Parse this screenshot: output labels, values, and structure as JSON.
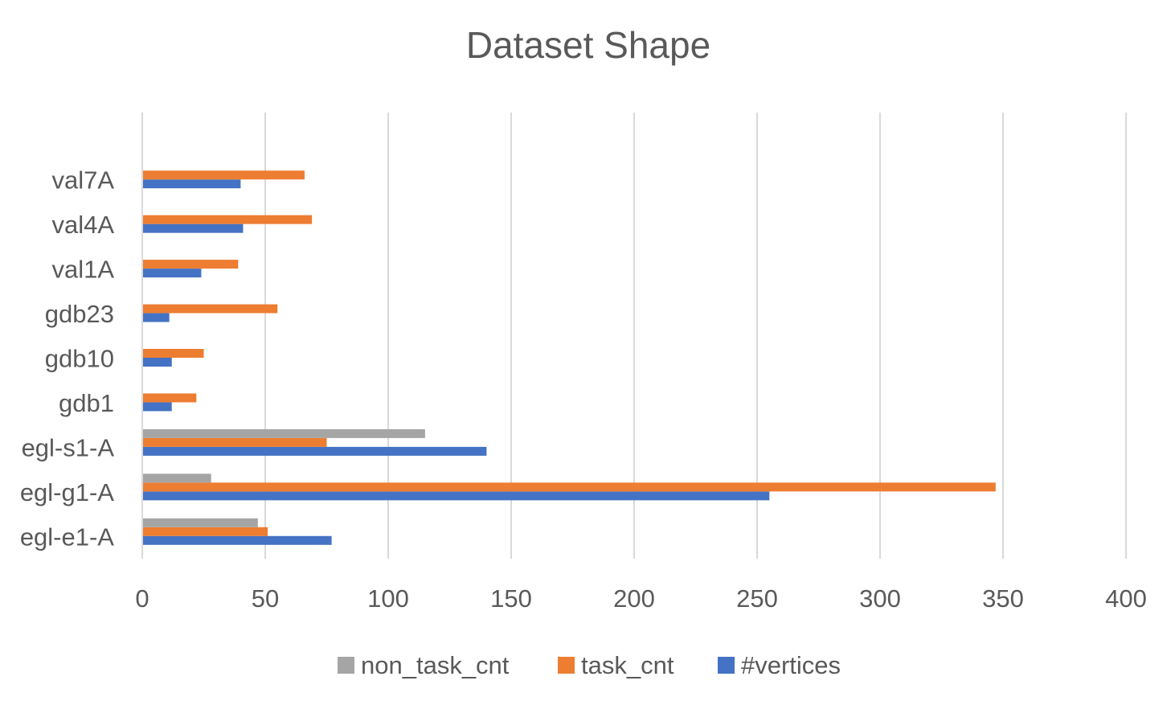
{
  "chart_data": {
    "type": "bar",
    "orientation": "horizontal",
    "title": "Dataset Shape",
    "xlabel": "",
    "ylabel": "",
    "xlim": [
      0,
      400
    ],
    "x_ticks": [
      0,
      50,
      100,
      150,
      200,
      250,
      300,
      350,
      400
    ],
    "grid": "vertical",
    "legend_position": "bottom",
    "categories": [
      "egl-e1-A",
      "egl-g1-A",
      "egl-s1-A",
      "gdb1",
      "gdb10",
      "gdb23",
      "val1A",
      "val4A",
      "val7A"
    ],
    "series": [
      {
        "name": "#vertices",
        "color": "#4472C4",
        "values": [
          77,
          255,
          140,
          12,
          12,
          11,
          24,
          41,
          40
        ]
      },
      {
        "name": "task_cnt",
        "color": "#ED7D31",
        "values": [
          51,
          347,
          75,
          22,
          25,
          55,
          39,
          69,
          66
        ]
      },
      {
        "name": "non_task_cnt",
        "color": "#A5A5A5",
        "values": [
          47,
          28,
          115,
          0,
          0,
          0,
          0,
          0,
          0
        ]
      }
    ],
    "legend_order": [
      "non_task_cnt",
      "task_cnt",
      "#vertices"
    ]
  }
}
